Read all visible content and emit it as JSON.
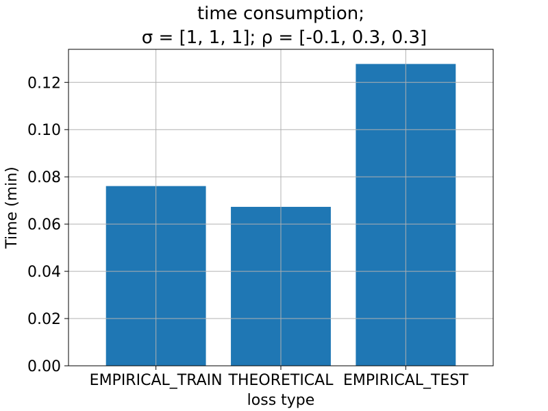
{
  "chart_data": {
    "type": "bar",
    "title_line1": "time consumption;",
    "title_line2": "σ = [1, 1, 1];  ρ = [-0.1, 0.3, 0.3]",
    "xlabel": "loss type",
    "ylabel": "Time (min)",
    "categories": [
      "EMPIRICAL_TRAIN",
      "THEORETICAL",
      "EMPIRICAL_TEST"
    ],
    "values": [
      0.0761,
      0.0673,
      0.1278
    ],
    "ylim": [
      0,
      0.134
    ],
    "yticks": [
      0.0,
      0.02,
      0.04,
      0.06,
      0.08,
      0.1,
      0.12
    ],
    "ytick_labels": [
      "0.00",
      "0.02",
      "0.04",
      "0.06",
      "0.08",
      "0.10",
      "0.12"
    ],
    "grid": true,
    "bar_color": "#1f77b4"
  }
}
